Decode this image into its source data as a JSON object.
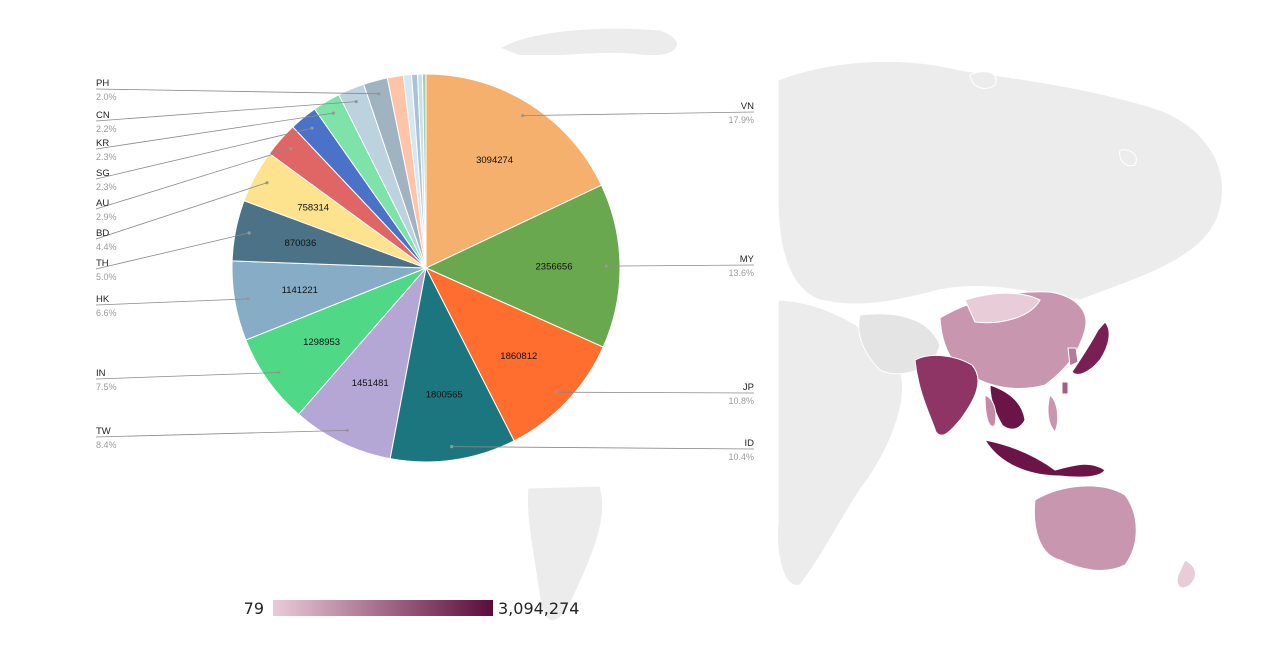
{
  "chart_data": [
    {
      "type": "pie",
      "title": "",
      "slices": [
        {
          "label": "VN",
          "value": 3094274,
          "percent": "17.9%",
          "value_label": "3094274",
          "color": "#f4b06c"
        },
        {
          "label": "MY",
          "value": 2356656,
          "percent": "13.6%",
          "value_label": "2356656",
          "color": "#6aa84f"
        },
        {
          "label": "JP",
          "value": 1860812,
          "percent": "10.8%",
          "value_label": "1860812",
          "color": "#ff6d2f"
        },
        {
          "label": "ID",
          "value": 1800565,
          "percent": "10.4%",
          "value_label": "1800565",
          "color": "#1c7680"
        },
        {
          "label": "TW",
          "value": 1451481,
          "percent": "8.4%",
          "value_label": "1451481",
          "color": "#b4a7d6"
        },
        {
          "label": "IN",
          "value": 1298953,
          "percent": "7.5%",
          "value_label": "1298953",
          "color": "#4fd987"
        },
        {
          "label": "HK",
          "value": 1141221,
          "percent": "6.6%",
          "value_label": "1141221",
          "color": "#86adc5"
        },
        {
          "label": "TH",
          "value": 870036,
          "percent": "5.0%",
          "value_label": "870036",
          "color": "#4b7286"
        },
        {
          "label": "BD",
          "value": 758314,
          "percent": "4.4%",
          "value_label": "758314",
          "color": "#fde38e"
        },
        {
          "label": "AU",
          "value": 501000,
          "percent": "2.9%",
          "value_label": "",
          "color": "#e06666"
        },
        {
          "label": "SG",
          "value": 398000,
          "percent": "2.3%",
          "value_label": "",
          "color": "#4a72c9"
        },
        {
          "label": "KR",
          "value": 398000,
          "percent": "2.3%",
          "value_label": "",
          "color": "#7de3a8"
        },
        {
          "label": "CN",
          "value": 380000,
          "percent": "2.2%",
          "value_label": "",
          "color": "#bcd2de"
        },
        {
          "label": "PH",
          "value": 346000,
          "percent": "2.0%",
          "value_label": "",
          "color": "#9fb4c0"
        },
        {
          "label": "",
          "value": 230000,
          "percent": "",
          "value_label": "",
          "color": "#ffc4a8"
        },
        {
          "label": "",
          "value": 115000,
          "percent": "",
          "value_label": "",
          "color": "#d6e7f2"
        },
        {
          "label": "",
          "value": 85000,
          "percent": "",
          "value_label": "",
          "color": "#a8c3d4"
        },
        {
          "label": "",
          "value": 70000,
          "percent": "",
          "value_label": "",
          "color": "#c9dfea"
        },
        {
          "label": "",
          "value": 50000,
          "percent": "",
          "value_label": "",
          "color": "#9ad0b7"
        }
      ]
    },
    {
      "type": "heatmap",
      "title": "",
      "color_scale": {
        "min": 79,
        "max": 3094274,
        "min_label": "79",
        "max_label": "3,094,274",
        "min_color": "#eacbd8",
        "max_color": "#5b0c3b"
      }
    }
  ]
}
